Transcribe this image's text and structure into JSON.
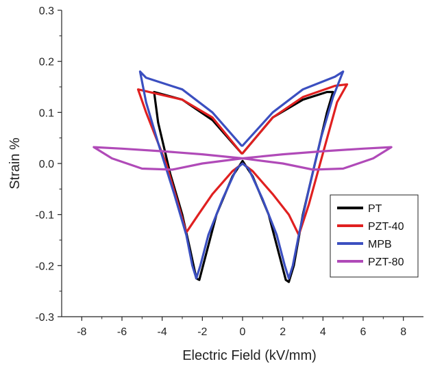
{
  "chart_data": {
    "type": "line",
    "title": "",
    "xlabel": "Electric Field (kV/mm)",
    "ylabel": "Strain %",
    "xlim": [
      -9,
      9
    ],
    "ylim": [
      -0.3,
      0.3
    ],
    "x_ticks": [
      -8,
      -6,
      -4,
      -2,
      0,
      2,
      4,
      6,
      8
    ],
    "y_ticks": [
      -0.3,
      -0.2,
      -0.1,
      0.0,
      0.1,
      0.2,
      0.3
    ],
    "x_tick_labels": [
      "-8",
      "-6",
      "-4",
      "-2",
      "0",
      "2",
      "4",
      "6",
      "8"
    ],
    "y_tick_labels": [
      "-0.3",
      "-0.2",
      "-0.1",
      "0.0",
      "0.1",
      "0.2",
      "0.3"
    ],
    "grid": false,
    "legend_position": "lower-right",
    "series": [
      {
        "name": "PT",
        "color": "#000000",
        "points": [
          [
            -0.05,
            0.02
          ],
          [
            -1.5,
            0.085
          ],
          [
            -3.0,
            0.125
          ],
          [
            -4.4,
            0.14
          ],
          [
            -4.2,
            0.08
          ],
          [
            -3.6,
            -0.02
          ],
          [
            -3.0,
            -0.1
          ],
          [
            -2.6,
            -0.17
          ],
          [
            -2.3,
            -0.225
          ],
          [
            -2.15,
            -0.228
          ],
          [
            -1.9,
            -0.19
          ],
          [
            -1.3,
            -0.1
          ],
          [
            -0.5,
            -0.025
          ],
          [
            0.0,
            0.005
          ],
          [
            0.5,
            -0.025
          ],
          [
            1.3,
            -0.1
          ],
          [
            1.9,
            -0.19
          ],
          [
            2.15,
            -0.228
          ],
          [
            2.3,
            -0.232
          ],
          [
            2.55,
            -0.2
          ],
          [
            3.0,
            -0.1
          ],
          [
            3.6,
            0.0
          ],
          [
            4.2,
            0.1
          ],
          [
            4.5,
            0.14
          ],
          [
            4.2,
            0.14
          ],
          [
            3.0,
            0.125
          ],
          [
            1.5,
            0.09
          ],
          [
            0.0,
            0.02
          ]
        ]
      },
      {
        "name": "PZT-40",
        "color": "#e02020",
        "points": [
          [
            -0.05,
            0.02
          ],
          [
            -1.5,
            0.09
          ],
          [
            -3.0,
            0.125
          ],
          [
            -5.2,
            0.145
          ],
          [
            -4.8,
            0.1
          ],
          [
            -3.8,
            0.0
          ],
          [
            -3.2,
            -0.08
          ],
          [
            -2.8,
            -0.135
          ],
          [
            -2.2,
            -0.1
          ],
          [
            -1.5,
            -0.06
          ],
          [
            -0.5,
            -0.015
          ],
          [
            0.0,
            0.0
          ],
          [
            0.5,
            -0.015
          ],
          [
            1.5,
            -0.06
          ],
          [
            2.3,
            -0.1
          ],
          [
            2.8,
            -0.14
          ],
          [
            3.3,
            -0.08
          ],
          [
            4.0,
            0.02
          ],
          [
            4.7,
            0.12
          ],
          [
            5.2,
            0.155
          ],
          [
            4.6,
            0.152
          ],
          [
            3.0,
            0.13
          ],
          [
            1.5,
            0.09
          ],
          [
            0.0,
            0.02
          ]
        ]
      },
      {
        "name": "MPB",
        "color": "#3b4fc0",
        "points": [
          [
            -0.05,
            0.035
          ],
          [
            -1.5,
            0.1
          ],
          [
            -3.0,
            0.145
          ],
          [
            -4.8,
            0.168
          ],
          [
            -5.1,
            0.18
          ],
          [
            -4.8,
            0.12
          ],
          [
            -4.2,
            0.04
          ],
          [
            -3.4,
            -0.06
          ],
          [
            -2.8,
            -0.14
          ],
          [
            -2.5,
            -0.2
          ],
          [
            -2.3,
            -0.225
          ],
          [
            -2.1,
            -0.2
          ],
          [
            -1.7,
            -0.14
          ],
          [
            -1.0,
            -0.07
          ],
          [
            -0.3,
            -0.01
          ],
          [
            0.0,
            0.0
          ],
          [
            0.3,
            -0.01
          ],
          [
            1.0,
            -0.07
          ],
          [
            1.7,
            -0.14
          ],
          [
            2.1,
            -0.2
          ],
          [
            2.3,
            -0.225
          ],
          [
            2.5,
            -0.2
          ],
          [
            2.8,
            -0.14
          ],
          [
            3.3,
            -0.05
          ],
          [
            3.9,
            0.05
          ],
          [
            4.5,
            0.13
          ],
          [
            4.9,
            0.17
          ],
          [
            5.0,
            0.18
          ],
          [
            4.6,
            0.17
          ],
          [
            3.0,
            0.145
          ],
          [
            1.5,
            0.1
          ],
          [
            0.0,
            0.035
          ]
        ]
      },
      {
        "name": "PZT-80",
        "color": "#b04ab8",
        "points": [
          [
            -7.4,
            0.032
          ],
          [
            -6.0,
            0.029
          ],
          [
            -4.0,
            0.024
          ],
          [
            -2.0,
            0.018
          ],
          [
            0.0,
            0.01
          ],
          [
            2.0,
            0.0
          ],
          [
            3.5,
            -0.012
          ],
          [
            5.0,
            -0.01
          ],
          [
            6.5,
            0.01
          ],
          [
            7.4,
            0.032
          ],
          [
            6.0,
            0.029
          ],
          [
            4.0,
            0.024
          ],
          [
            2.0,
            0.018
          ],
          [
            0.0,
            0.01
          ],
          [
            -2.0,
            0.0
          ],
          [
            -3.5,
            -0.012
          ],
          [
            -5.0,
            -0.01
          ],
          [
            -6.5,
            0.01
          ],
          [
            -7.4,
            0.032
          ]
        ]
      }
    ]
  }
}
